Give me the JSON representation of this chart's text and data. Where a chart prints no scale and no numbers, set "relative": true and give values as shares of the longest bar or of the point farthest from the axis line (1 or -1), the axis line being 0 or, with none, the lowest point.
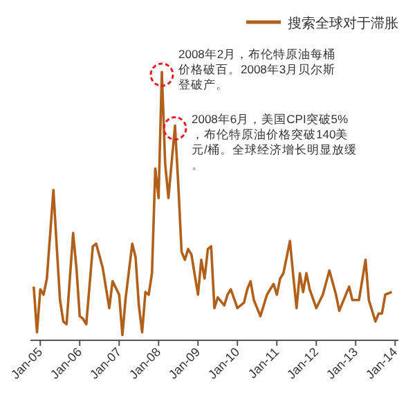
{
  "chart_data": {
    "type": "line",
    "relative": true,
    "legend": "top right",
    "marker": "none",
    "line_style": "solid",
    "xlim": [
      "2004-10",
      "2014-02"
    ],
    "xticks": [
      {
        "value": "2005-01",
        "label": "Jan-05"
      },
      {
        "value": "2006-01",
        "label": "Jan-06"
      },
      {
        "value": "2007-01",
        "label": "Jan-07"
      },
      {
        "value": "2008-01",
        "label": "Jan-08"
      },
      {
        "value": "2009-01",
        "label": "Jan-09"
      },
      {
        "value": "2010-01",
        "label": "Jan-10"
      },
      {
        "value": "2011-01",
        "label": "Jan-11"
      },
      {
        "value": "2012-01",
        "label": "Jan-12"
      },
      {
        "value": "2013-01",
        "label": "Jan-13"
      },
      {
        "value": "2014-01",
        "label": "Jan-14"
      }
    ],
    "x": [
      "2004-11",
      "2004-12",
      "2005-01",
      "2005-02",
      "2005-03",
      "2005-05",
      "2005-06",
      "2005-07",
      "2005-08",
      "2005-09",
      "2005-11",
      "2005-12",
      "2006-01",
      "2006-02",
      "2006-03",
      "2006-05",
      "2006-06",
      "2006-08",
      "2006-10",
      "2006-11",
      "2007-01",
      "2007-02",
      "2007-03",
      "2007-05",
      "2007-06",
      "2007-07",
      "2007-08",
      "2007-09",
      "2007-10",
      "2007-11",
      "2007-12",
      "2008-01",
      "2008-02",
      "2008-03",
      "2008-04",
      "2008-06",
      "2008-07",
      "2008-08",
      "2008-09",
      "2008-10",
      "2008-11",
      "2009-01",
      "2009-02",
      "2009-03",
      "2009-04",
      "2009-05",
      "2009-06",
      "2009-07",
      "2009-09",
      "2009-10",
      "2009-11",
      "2010-01",
      "2010-03",
      "2010-04",
      "2010-05",
      "2010-06",
      "2010-08",
      "2010-10",
      "2010-12",
      "2011-01",
      "2011-02",
      "2011-03",
      "2011-05",
      "2011-06",
      "2011-07",
      "2011-08",
      "2011-09",
      "2011-10",
      "2011-11",
      "2012-01",
      "2012-03",
      "2012-05",
      "2012-07",
      "2012-08",
      "2012-11",
      "2012-12",
      "2013-02",
      "2013-04",
      "2013-05",
      "2013-07",
      "2013-08",
      "2013-09",
      "2013-10",
      "2013-12"
    ],
    "series": [
      {
        "name": "搜索全球对于滞胀",
        "color": "#b0601a",
        "values": [
          0.2,
          0.03,
          0.19,
          0.17,
          0.23,
          0.56,
          0.35,
          0.15,
          0.07,
          0.06,
          0.4,
          0.27,
          0.09,
          0.08,
          0.06,
          0.35,
          0.36,
          0.27,
          0.12,
          0.22,
          0.17,
          0.02,
          0.16,
          0.36,
          0.31,
          0.13,
          0.03,
          0.18,
          0.17,
          0.25,
          0.64,
          0.53,
          1,
          0.66,
          0.53,
          0.8,
          0.58,
          0.33,
          0.3,
          0.34,
          0.32,
          0.17,
          0.3,
          0.23,
          0.34,
          0.35,
          0.12,
          0.16,
          0.13,
          0.17,
          0.19,
          0.12,
          0.14,
          0.19,
          0.22,
          0.15,
          0.09,
          0.17,
          0.21,
          0.17,
          0.23,
          0.25,
          0.37,
          0.24,
          0.12,
          0.25,
          0.18,
          0.25,
          0.19,
          0.12,
          0.17,
          0.26,
          0.17,
          0.11,
          0.2,
          0.15,
          0.15,
          0.3,
          0.15,
          0.07,
          0.1,
          0.1,
          0.17,
          0.18
        ]
      }
    ],
    "annotations": [
      {
        "text": "2008年2月，布伦特原油每桶价格破百。2008年3月贝尔斯登破产。",
        "x": "2008-02",
        "y": 1
      },
      {
        "text": "2008年6月，美国CPI突破5%，布伦特原油价格突破140美元/桶。全球经济增长明显放缓。",
        "x": "2008-06",
        "y": 0.8
      }
    ]
  }
}
